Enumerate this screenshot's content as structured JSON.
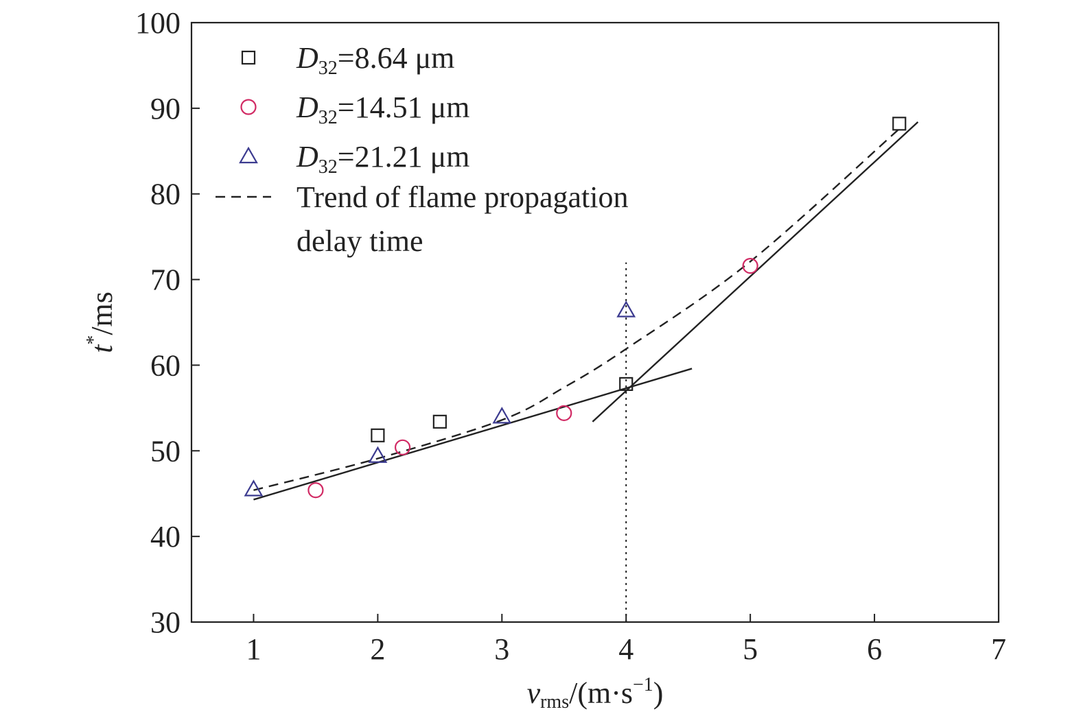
{
  "chart_data": {
    "type": "scatter",
    "xlim": [
      0.5,
      7
    ],
    "ylim": [
      30,
      100
    ],
    "x_ticks": [
      "1",
      "2",
      "3",
      "4",
      "5",
      "6",
      "7"
    ],
    "y_ticks": [
      "30",
      "40",
      "50",
      "60",
      "70",
      "80",
      "90",
      "100"
    ],
    "xlabel": {
      "var": "v",
      "sub": "rms",
      "unit_open": "/(m·s",
      "exp": "−1",
      "unit_close": ")"
    },
    "ylabel": {
      "var": "t",
      "sup": "*",
      "unit": "/ms"
    },
    "grid": false,
    "legend_position": "top-left",
    "series": [
      {
        "name": "D32=8.64 μm",
        "label_parts": {
          "var": "D",
          "sub": "32",
          "rest": "=8.64 μm"
        },
        "marker": "square",
        "color": "#222222",
        "points": [
          [
            2.0,
            51.8
          ],
          [
            2.5,
            53.4
          ],
          [
            4.0,
            57.8
          ],
          [
            6.2,
            88.2
          ]
        ]
      },
      {
        "name": "D32=14.51 μm",
        "label_parts": {
          "var": "D",
          "sub": "32",
          "rest": "=14.51 μm"
        },
        "marker": "circle",
        "color": "#d12a64",
        "points": [
          [
            1.5,
            45.4
          ],
          [
            2.2,
            50.4
          ],
          [
            3.5,
            54.4
          ],
          [
            5.0,
            71.6
          ]
        ]
      },
      {
        "name": "D32=21.21 μm",
        "label_parts": {
          "var": "D",
          "sub": "32",
          "rest": "=21.21 μm"
        },
        "marker": "triangle",
        "color": "#3b3a8f",
        "points": [
          [
            1.0,
            45.5
          ],
          [
            2.0,
            49.4
          ],
          [
            3.0,
            54.0
          ],
          [
            4.0,
            66.4
          ]
        ]
      }
    ],
    "trend": {
      "name": "Trend of flame propagation delay time",
      "label_lines": [
        "Trend of flame propagation",
        "delay time"
      ],
      "style": "dashed",
      "color": "#222222",
      "points": [
        [
          1.0,
          45.4
        ],
        [
          2.0,
          49.1
        ],
        [
          3.0,
          53.6
        ],
        [
          3.5,
          57.4
        ],
        [
          4.0,
          61.9
        ],
        [
          5.0,
          72.1
        ],
        [
          6.2,
          87.6
        ]
      ]
    },
    "fit_lines": [
      {
        "style": "solid",
        "color": "#222222",
        "points": [
          [
            1.0,
            44.3
          ],
          [
            4.53,
            59.6
          ]
        ]
      },
      {
        "style": "solid",
        "color": "#222222",
        "points": [
          [
            3.73,
            53.4
          ],
          [
            6.35,
            88.4
          ]
        ]
      }
    ],
    "vertical_line": {
      "x": 4.0,
      "y_range": [
        30,
        72
      ],
      "style": "dotted",
      "color": "#222222"
    }
  }
}
